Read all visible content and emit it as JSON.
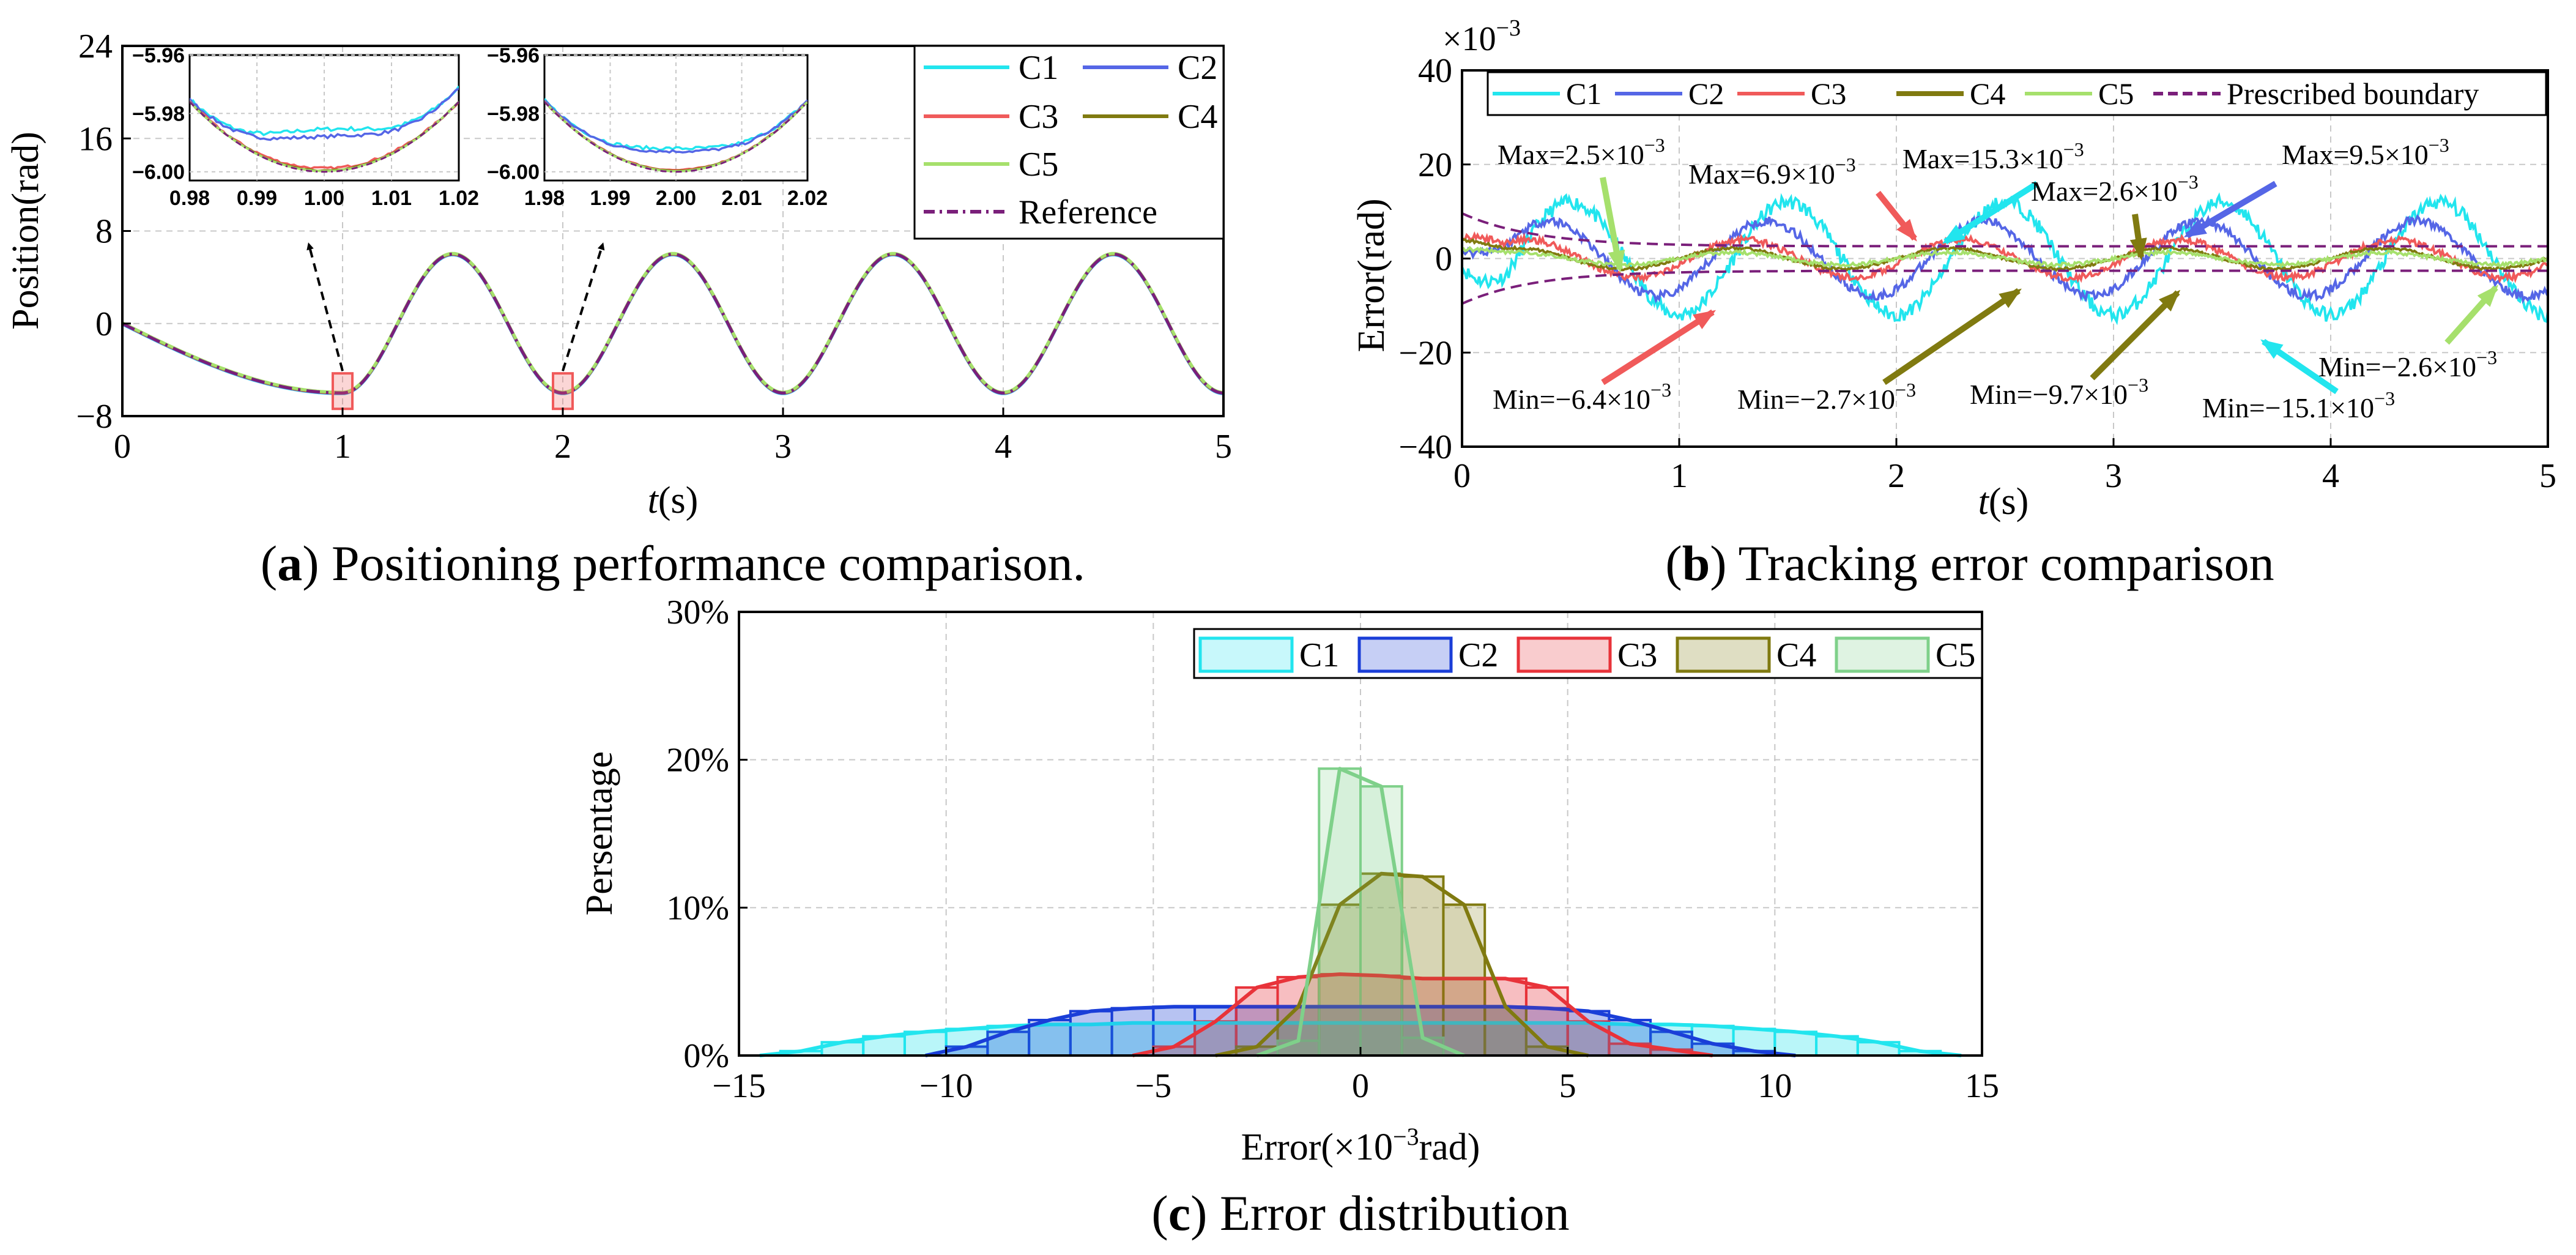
{
  "colors": {
    "C1": "#22e5ee",
    "C2": "#5566e6",
    "C3": "#f05a5a",
    "C4": "#807a10",
    "C5": "#a6e06c",
    "reference": "#7a1f7a",
    "hist_C1": "#22e5ee",
    "hist_C2": "#1a3ed8",
    "hist_C3": "#e8333a",
    "hist_C4": "#807a10",
    "hist_C5": "#7fd08a"
  },
  "chart_data": [
    {
      "id": "a",
      "type": "line",
      "caption_label": "a",
      "caption_text": " Positioning performance comparison.",
      "xlabel_italic": "t",
      "xlabel_rest": "(s)",
      "ylabel": "Position(rad)",
      "xlim": [
        0,
        5
      ],
      "ylim": [
        -8,
        24
      ],
      "xticks": [
        "0",
        "1",
        "2",
        "3",
        "4",
        "5"
      ],
      "yticks": [
        "-8",
        "0",
        "8",
        "16",
        "24"
      ],
      "yticks_display": [
        "−8",
        "0",
        "8",
        "16",
        "24"
      ],
      "series": [
        {
          "name": "C1"
        },
        {
          "name": "C2"
        },
        {
          "name": "C3"
        },
        {
          "name": "C4"
        },
        {
          "name": "C5"
        },
        {
          "name": "Reference"
        }
      ],
      "legend": [
        "C1",
        "C2",
        "C3",
        "C4",
        "C5",
        "Reference"
      ],
      "insets": [
        {
          "xlim": [
            0.98,
            1.02
          ],
          "ylim": [
            -6.0,
            -5.96
          ],
          "xticks": [
            "0.98",
            "0.99",
            "1.00",
            "1.01",
            "1.02"
          ],
          "yticks": [
            "-5.96",
            "-5.98",
            "-6.00"
          ],
          "yticks_display": [
            "−5.96",
            "−5.98",
            "−6.00"
          ]
        },
        {
          "xlim": [
            1.98,
            2.02
          ],
          "ylim": [
            -6.0,
            -5.96
          ],
          "xticks": [
            "1.98",
            "1.99",
            "2.00",
            "2.01",
            "2.02"
          ],
          "yticks": [
            "-5.96",
            "-5.98",
            "-6.00"
          ],
          "yticks_display": [
            "−5.96",
            "−5.98",
            "−6.00"
          ]
        }
      ]
    },
    {
      "id": "b",
      "type": "line",
      "caption_label": "b",
      "caption_text": " Tracking error comparison",
      "xlabel_italic": "t",
      "xlabel_rest": "(s)",
      "ylabel": "Error(rad)",
      "scale_label": "×10",
      "scale_exp": "−3",
      "xlim": [
        0,
        5
      ],
      "ylim": [
        -40,
        40
      ],
      "xticks": [
        "0",
        "1",
        "2",
        "3",
        "4",
        "5"
      ],
      "yticks": [
        "-40",
        "-20",
        "0",
        "20",
        "40"
      ],
      "yticks_display": [
        "−40",
        "−20",
        "0",
        "20",
        "40"
      ],
      "legend": [
        "C1",
        "C2",
        "C3",
        "C4",
        "C5",
        "Prescribed boundary"
      ],
      "annotations": [
        {
          "text": "Max=2.5×10",
          "exp": "−3"
        },
        {
          "text": "Max=6.9×10",
          "exp": "−3"
        },
        {
          "text": "Max=15.3×10",
          "exp": "−3"
        },
        {
          "text": "Max=2.6×10",
          "exp": "−3"
        },
        {
          "text": "Max=9.5×10",
          "exp": "−3"
        },
        {
          "text": "Min=−6.4×10",
          "exp": "−3"
        },
        {
          "text": "Min=−2.7×10",
          "exp": "−3"
        },
        {
          "text": "Min=−9.7×10",
          "exp": "−3"
        },
        {
          "text": "Min=−15.1×10",
          "exp": "−3"
        },
        {
          "text": "Min=−2.6×10",
          "exp": "−3"
        }
      ]
    },
    {
      "id": "c",
      "type": "bar",
      "caption_label": "c",
      "caption_text": " Error distribution",
      "xlabel": "Error(×10",
      "xlabel_exp": "−3",
      "xlabel_rest": "rad)",
      "ylabel": "Persentage",
      "xlim": [
        -15,
        15
      ],
      "ylim": [
        0,
        30
      ],
      "xticks": [
        "-15",
        "-10",
        "-5",
        "0",
        "5",
        "10",
        "15"
      ],
      "xticks_display": [
        "−15",
        "−10",
        "−5",
        "0",
        "5",
        "10",
        "15"
      ],
      "yticks": [
        "0%",
        "10%",
        "20%",
        "30%"
      ],
      "legend": [
        "C1",
        "C2",
        "C3",
        "C4",
        "C5"
      ],
      "bin_width": 1,
      "series": [
        {
          "name": "C1",
          "bins_start": -14,
          "values": [
            0.3,
            0.9,
            1.3,
            1.6,
            1.8,
            2.0,
            2.1,
            2.1,
            2.2,
            2.2,
            2.2,
            2.2,
            2.2,
            2.2,
            2.2,
            2.2,
            2.2,
            2.2,
            2.2,
            2.2,
            2.1,
            2.1,
            2.0,
            1.8,
            1.6,
            1.3,
            0.9,
            0.3
          ]
        },
        {
          "name": "C2",
          "bins_start": -10,
          "values": [
            0.6,
            1.6,
            2.4,
            3.0,
            3.2,
            3.3,
            3.3,
            3.3,
            3.3,
            3.3,
            3.3,
            3.3,
            3.3,
            3.3,
            3.2,
            3.0,
            2.4,
            1.6,
            0.8,
            0.3
          ]
        },
        {
          "name": "C3",
          "bins_start": -5,
          "values": [
            0.6,
            2.3,
            4.6,
            5.3,
            5.5,
            5.4,
            5.2,
            5.2,
            5.2,
            4.6,
            2.3,
            0.8,
            0.4
          ]
        },
        {
          "name": "C4",
          "bins_start": -3,
          "values": [
            0.6,
            3.3,
            10.2,
            12.3,
            12.1,
            10.2,
            3.3,
            0.6
          ]
        },
        {
          "name": "C5",
          "bins_start": -2,
          "values": [
            1.0,
            19.4,
            18.2,
            1.2
          ]
        }
      ]
    }
  ]
}
